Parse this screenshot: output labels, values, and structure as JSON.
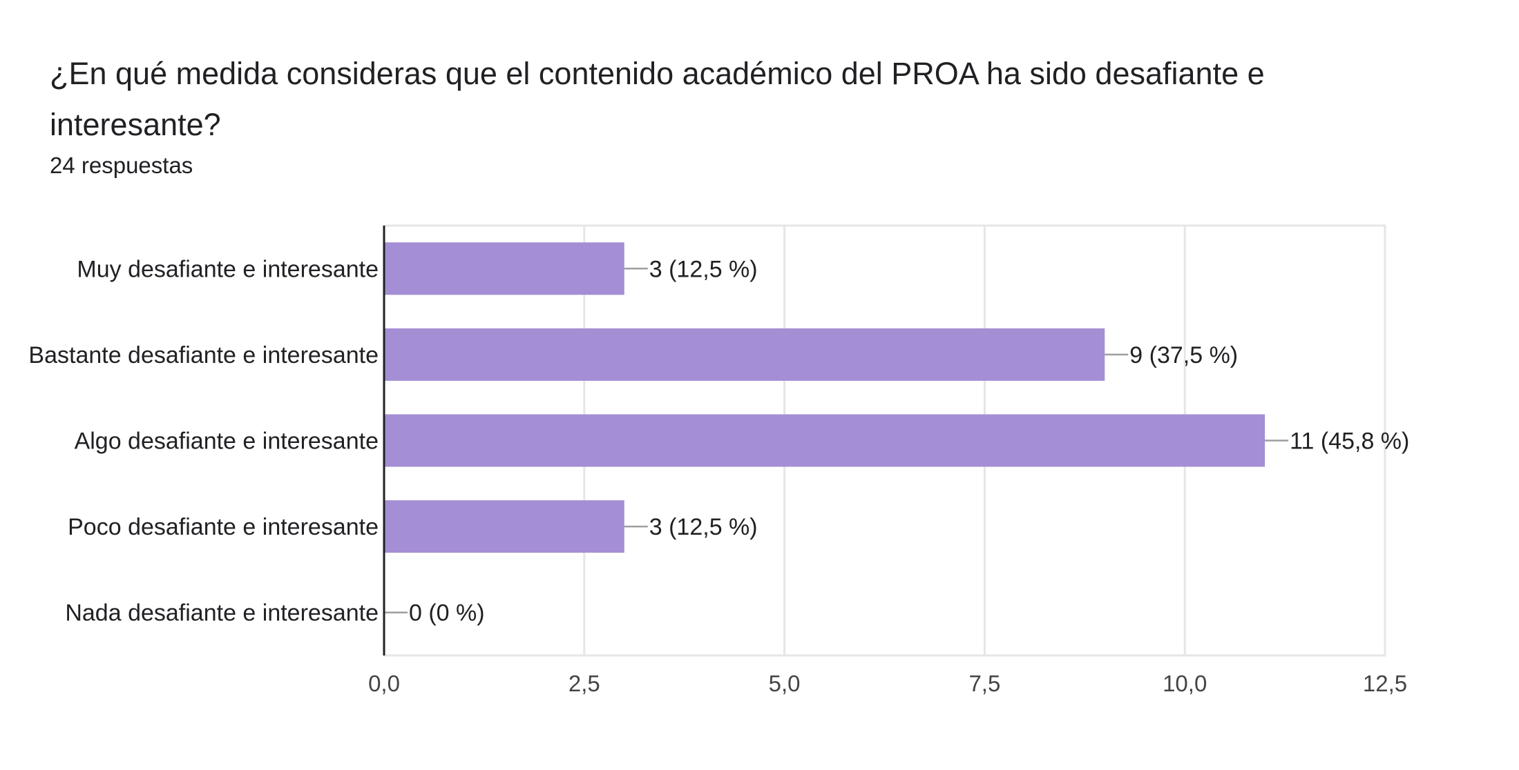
{
  "question": {
    "title": "¿En qué medida consideras que el contenido académico del PROA ha sido desafiante e interesante?",
    "responses": "24 respuestas"
  },
  "colors": {
    "bar": "#a48ed4",
    "grid": "#e6e6e6",
    "axis": "#202124",
    "leader": "#9e9e9e",
    "text": "#202124",
    "tick_text": "#444444"
  },
  "chart_data": {
    "type": "bar",
    "orientation": "horizontal",
    "categories": [
      "Muy desafiante e interesante",
      "Bastante desafiante e interesante",
      "Algo desafiante e interesante",
      "Poco desafiante e interesante",
      "Nada desafiante e interesante"
    ],
    "values": [
      3,
      9,
      11,
      3,
      0
    ],
    "data_labels": [
      "3 (12,5 %)",
      "9 (37,5 %)",
      "11 (45,8 %)",
      "3 (12,5 %)",
      "0 (0 %)"
    ],
    "xlim": [
      0,
      12.5
    ],
    "xticks": [
      0,
      2.5,
      5,
      7.5,
      10,
      12.5
    ],
    "xtick_labels": [
      "0,0",
      "2,5",
      "5,0",
      "7,5",
      "10,0",
      "12,5"
    ],
    "grid": true,
    "legend": "none"
  }
}
